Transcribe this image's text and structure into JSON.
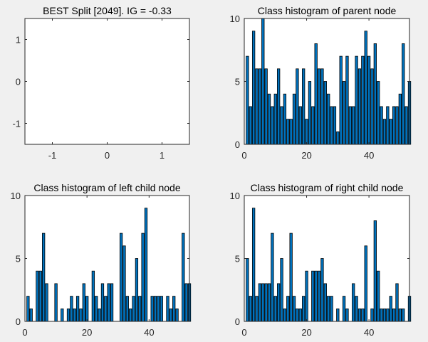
{
  "chart_data": [
    {
      "type": "line",
      "title": "BEST Split [2049]. IG = -0.33",
      "xlim": [
        -1.5,
        1.5
      ],
      "ylim": [
        -1.5,
        1.5
      ],
      "xticks": [
        -1,
        0,
        1
      ],
      "yticks": [
        -1,
        0,
        1
      ],
      "series": [],
      "grid": false
    },
    {
      "type": "bar",
      "title": "Class histogram of parent node",
      "xlim": [
        0,
        53
      ],
      "ylim": [
        0,
        10
      ],
      "xticks": [
        0,
        20,
        40
      ],
      "yticks": [
        0,
        5,
        10
      ],
      "bar_width": 0.8,
      "bar_color": "#0072bd",
      "x": [
        1,
        2,
        3,
        4,
        5,
        6,
        7,
        8,
        9,
        10,
        11,
        12,
        13,
        14,
        15,
        16,
        17,
        18,
        19,
        20,
        21,
        22,
        23,
        24,
        25,
        26,
        27,
        28,
        29,
        30,
        31,
        32,
        33,
        34,
        35,
        36,
        37,
        38,
        39,
        40,
        41,
        42,
        43,
        44,
        45,
        46,
        47,
        48,
        49,
        50,
        51,
        52,
        53
      ],
      "values": [
        7,
        3,
        9,
        6,
        6,
        10,
        6,
        4,
        3,
        4,
        6,
        3,
        4,
        2,
        2,
        4,
        6,
        3,
        6,
        2,
        5,
        3,
        8,
        6,
        6,
        5,
        4,
        3,
        3,
        1,
        7,
        5,
        7,
        3,
        3,
        7,
        6,
        7,
        9,
        7,
        6,
        8,
        5,
        3,
        2,
        3,
        2,
        3,
        3,
        4,
        8,
        3,
        5
      ]
    },
    {
      "type": "bar",
      "title": "Class histogram of left child node",
      "xlim": [
        0,
        53
      ],
      "ylim": [
        0,
        10
      ],
      "xticks": [
        0,
        20,
        40
      ],
      "yticks": [
        0,
        5,
        10
      ],
      "bar_width": 0.8,
      "bar_color": "#0072bd",
      "x": [
        1,
        2,
        3,
        4,
        5,
        6,
        7,
        8,
        9,
        10,
        11,
        12,
        13,
        14,
        15,
        16,
        17,
        18,
        19,
        20,
        21,
        22,
        23,
        24,
        25,
        26,
        27,
        28,
        29,
        30,
        31,
        32,
        33,
        34,
        35,
        36,
        37,
        38,
        39,
        40,
        41,
        42,
        43,
        44,
        45,
        46,
        47,
        48,
        49,
        50,
        51,
        52,
        53
      ],
      "values": [
        2,
        1,
        0,
        4,
        4,
        7,
        3,
        0,
        0,
        3,
        0,
        1,
        0,
        1,
        2,
        1,
        2,
        1,
        3,
        2,
        0,
        4,
        2,
        1,
        3,
        2,
        3,
        3,
        0,
        0,
        7,
        6,
        2,
        1,
        2,
        5,
        2,
        7,
        9,
        0,
        2,
        2,
        2,
        2,
        0,
        2,
        1,
        2,
        1,
        0,
        7,
        3,
        3
      ]
    },
    {
      "type": "bar",
      "title": "Class histogram of right child node",
      "xlim": [
        0,
        53
      ],
      "ylim": [
        0,
        10
      ],
      "xticks": [
        0,
        20,
        40
      ],
      "yticks": [
        0,
        5,
        10
      ],
      "bar_width": 0.8,
      "bar_color": "#0072bd",
      "x": [
        1,
        2,
        3,
        4,
        5,
        6,
        7,
        8,
        9,
        10,
        11,
        12,
        13,
        14,
        15,
        16,
        17,
        18,
        19,
        20,
        21,
        22,
        23,
        24,
        25,
        26,
        27,
        28,
        29,
        30,
        31,
        32,
        33,
        34,
        35,
        36,
        37,
        38,
        39,
        40,
        41,
        42,
        43,
        44,
        45,
        46,
        47,
        48,
        49,
        50,
        51,
        52,
        53
      ],
      "values": [
        5,
        2,
        9,
        2,
        3,
        3,
        3,
        3,
        7,
        2,
        3,
        5,
        1,
        2,
        7,
        2,
        1,
        1,
        2,
        4,
        0,
        4,
        4,
        4,
        5,
        3,
        2,
        2,
        0,
        1,
        0,
        2,
        1,
        0,
        3,
        2,
        1,
        1,
        6,
        0,
        1,
        8,
        4,
        1,
        1,
        1,
        2,
        1,
        3,
        1,
        1,
        0,
        2
      ]
    }
  ]
}
